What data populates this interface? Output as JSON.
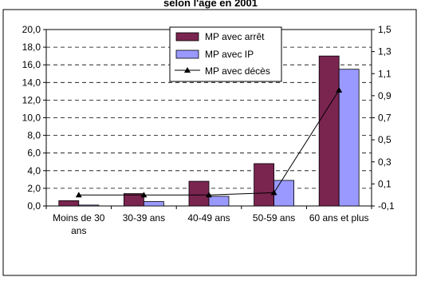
{
  "chart_data": {
    "type": "bar",
    "title": "selon l'âge en 2001",
    "categories": [
      "Moins de 30 ans",
      "30-39 ans",
      "40-49 ans",
      "50-59 ans",
      "60 ans et plus"
    ],
    "category_lines": [
      [
        "Moins de 30",
        "ans"
      ],
      [
        "30-39 ans"
      ],
      [
        "40-49 ans"
      ],
      [
        "50-59 ans"
      ],
      [
        "60 ans et plus"
      ]
    ],
    "series": [
      {
        "name": "MP avec arrêt",
        "type": "bar",
        "axis": "left",
        "color": "#7a2450",
        "values": [
          0.6,
          1.4,
          2.8,
          4.8,
          17.0
        ]
      },
      {
        "name": "MP avec IP",
        "type": "bar",
        "axis": "left",
        "color": "#9999ff",
        "values": [
          0.1,
          0.5,
          1.1,
          2.9,
          15.5
        ]
      },
      {
        "name": "MP avec décès",
        "type": "line",
        "axis": "right",
        "color": "#000000",
        "values": [
          0.0,
          0.0,
          0.0,
          0.02,
          0.95
        ]
      }
    ],
    "y_left": {
      "range": [
        0,
        20
      ],
      "ticks": [
        "0,0",
        "2,0",
        "4,0",
        "6,0",
        "8,0",
        "10,0",
        "12,0",
        "14,0",
        "16,0",
        "18,0",
        "20,0"
      ]
    },
    "y_right": {
      "range": [
        -0.1,
        1.5
      ],
      "ticks": [
        "-0,1",
        "0,1",
        "0,3",
        "0,5",
        "0,7",
        "0,9",
        "1,1",
        "1,3",
        "1,5"
      ]
    },
    "grid": "horizontal dashed",
    "legend_position": "top-right"
  }
}
